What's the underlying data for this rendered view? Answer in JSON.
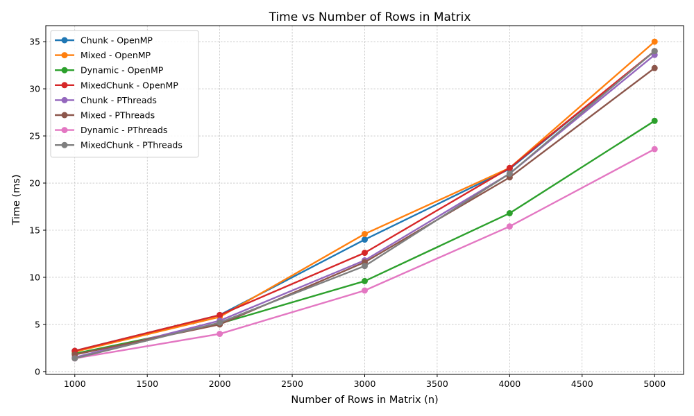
{
  "chart_data": {
    "type": "line",
    "title": "Time vs Number of Rows in Matrix",
    "xlabel": "Number of Rows in Matrix (n)",
    "ylabel": "Time (ms)",
    "x": [
      1000,
      2000,
      3000,
      4000,
      5000
    ],
    "xlim": [
      800,
      5200
    ],
    "ylim": [
      -0.3,
      36.7
    ],
    "xticks": [
      1000,
      1500,
      2000,
      2500,
      3000,
      3500,
      4000,
      4500,
      5000
    ],
    "yticks": [
      0,
      5,
      10,
      15,
      20,
      25,
      30,
      35
    ],
    "grid": true,
    "legend_position": "top-left",
    "series": [
      {
        "name": "Chunk - OpenMP",
        "color": "#1f77b4",
        "values": [
          2.2,
          6.0,
          14.0,
          21.5,
          34.0
        ]
      },
      {
        "name": "Mixed - OpenMP",
        "color": "#ff7f0e",
        "values": [
          2.1,
          5.8,
          14.6,
          21.6,
          35.0
        ]
      },
      {
        "name": "Dynamic - OpenMP",
        "color": "#2ca02c",
        "values": [
          1.9,
          5.1,
          9.6,
          16.8,
          26.6
        ]
      },
      {
        "name": "MixedChunk - OpenMP",
        "color": "#d62728",
        "values": [
          2.2,
          6.0,
          12.6,
          21.6,
          34.0
        ]
      },
      {
        "name": "Chunk - PThreads",
        "color": "#9467bd",
        "values": [
          1.5,
          5.4,
          11.8,
          21.0,
          33.6
        ]
      },
      {
        "name": "Mixed - PThreads",
        "color": "#8c564b",
        "values": [
          1.8,
          5.0,
          11.6,
          20.6,
          32.2
        ]
      },
      {
        "name": "Dynamic - PThreads",
        "color": "#e377c2",
        "values": [
          1.4,
          4.0,
          8.6,
          15.4,
          23.6
        ]
      },
      {
        "name": "MixedChunk - PThreads",
        "color": "#7f7f7f",
        "values": [
          1.4,
          5.2,
          11.2,
          21.0,
          34.0
        ]
      }
    ]
  }
}
